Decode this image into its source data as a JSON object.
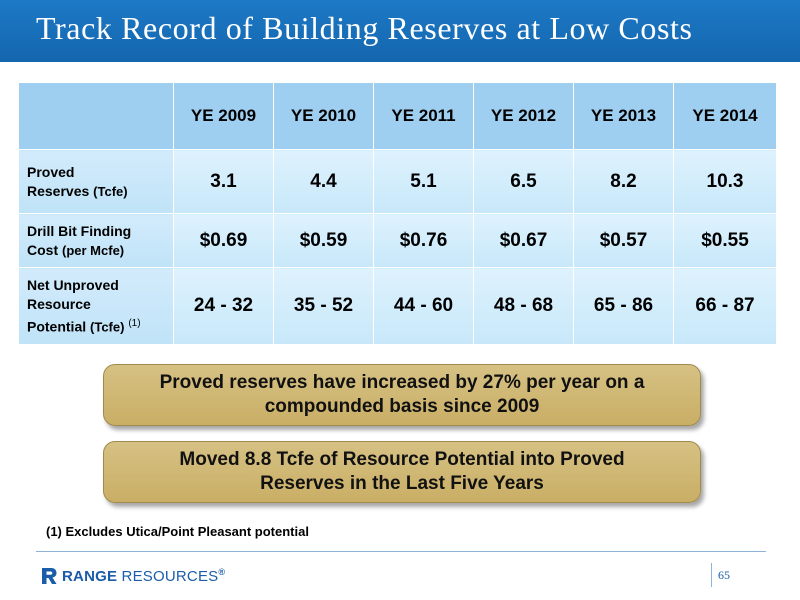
{
  "slide": {
    "title": "Track Record of Building Reserves at Low Costs",
    "page_number": "65"
  },
  "table": {
    "headers": [
      "YE 2009",
      "YE 2010",
      "YE 2011",
      "YE 2012",
      "YE 2013",
      "YE 2014"
    ],
    "rows": [
      {
        "label_line1": "Proved",
        "label_line2": "Reserves",
        "unit": "(Tcfe)",
        "footnote": "",
        "values": [
          "3.1",
          "4.4",
          "5.1",
          "6.5",
          "8.2",
          "10.3"
        ]
      },
      {
        "label_line1": "Drill Bit Finding",
        "label_line2": "Cost",
        "unit": "(per Mcfe)",
        "footnote": "",
        "values": [
          "$0.69",
          "$0.59",
          "$0.76",
          "$0.67",
          "$0.57",
          "$0.55"
        ]
      },
      {
        "label_line1": "Net Unproved",
        "label_line2": "Resource",
        "label_line3": "Potential",
        "unit": "(Tcfe)",
        "footnote": "(1)",
        "values": [
          "24 - 32",
          "35 - 52",
          "44 - 60",
          "48 - 68",
          "65 - 86",
          "66 - 87"
        ]
      }
    ]
  },
  "callouts": {
    "first_line1": "Proved reserves have increased by 27% per year on a",
    "first_line2": "compounded basis since 2009",
    "second_line1": "Moved 8.8 Tcfe of Resource Potential into Proved",
    "second_line2": "Reserves in the Last Five Years"
  },
  "footnote": "(1)  Excludes Utica/Point Pleasant potential",
  "logo": {
    "bold": "RANGE",
    "light": "RESOURCES",
    "mark": "®",
    "icon": "range-r-logo-icon"
  },
  "colors": {
    "title_bar": "#1466ae",
    "header_cell": "#9fcff0",
    "body_cell": "#d2ebfb",
    "callout": "#c9ae65",
    "brand": "#1b5da8"
  }
}
